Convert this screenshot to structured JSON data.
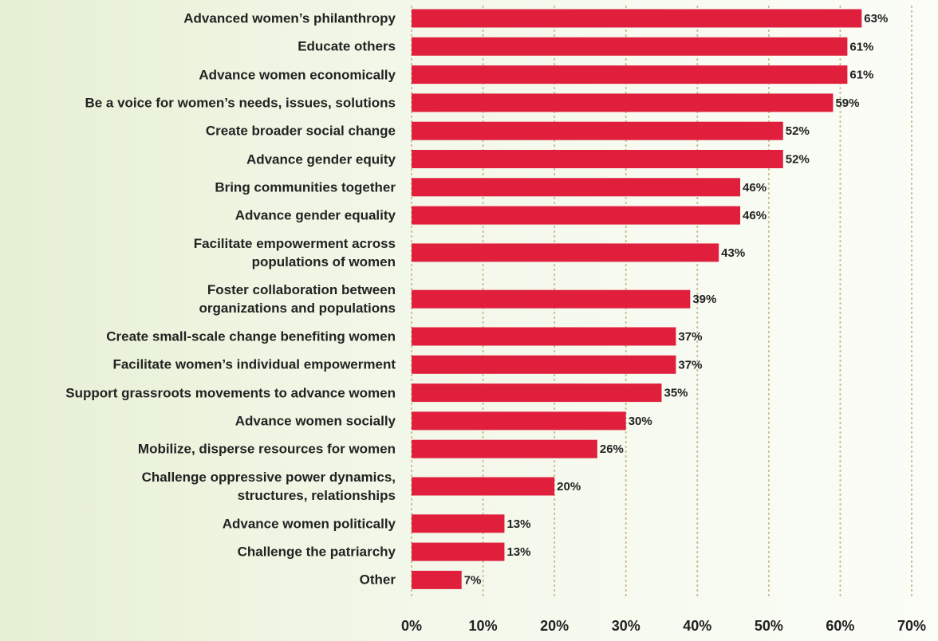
{
  "chart_data": {
    "type": "barh",
    "categories": [
      "Advanced women’s philanthropy",
      "Educate others",
      "Advance women economically",
      "Be a voice for women’s needs, issues, solutions",
      "Create broader social change",
      "Advance gender equity",
      "Bring communities together",
      "Advance gender equality",
      "Facilitate empowerment across\npopulations of women",
      "Foster collaboration between\norganizations and populations",
      "Create small-scale change benefiting women",
      "Facilitate women’s individual empowerment",
      "Support grassroots movements to advance women",
      "Advance women socially",
      "Mobilize, disperse resources for women",
      "Challenge oppressive power dynamics,\nstructures, relationships",
      "Advance women politically",
      "Challenge the patriarchy",
      "Other"
    ],
    "values": [
      63,
      61,
      61,
      59,
      52,
      52,
      46,
      46,
      43,
      39,
      37,
      37,
      35,
      30,
      26,
      20,
      13,
      13,
      7
    ],
    "value_labels": [
      "63%",
      "61%",
      "61%",
      "59%",
      "52%",
      "52%",
      "46%",
      "46%",
      "43%",
      "39%",
      "37%",
      "37%",
      "35%",
      "30%",
      "26%",
      "20%",
      "13%",
      "13%",
      "7%"
    ],
    "color": "#e01f3d",
    "xlim": [
      0,
      70
    ],
    "xticks": [
      {
        "value": 0,
        "label": "0%"
      },
      {
        "value": 10,
        "label": "10%"
      },
      {
        "value": 20,
        "label": "20%"
      },
      {
        "value": 30,
        "label": "30%"
      },
      {
        "value": 40,
        "label": "40%"
      },
      {
        "value": 50,
        "label": "50%"
      },
      {
        "value": 60,
        "label": "60%"
      },
      {
        "value": 70,
        "label": "70%"
      }
    ],
    "grid": true
  }
}
